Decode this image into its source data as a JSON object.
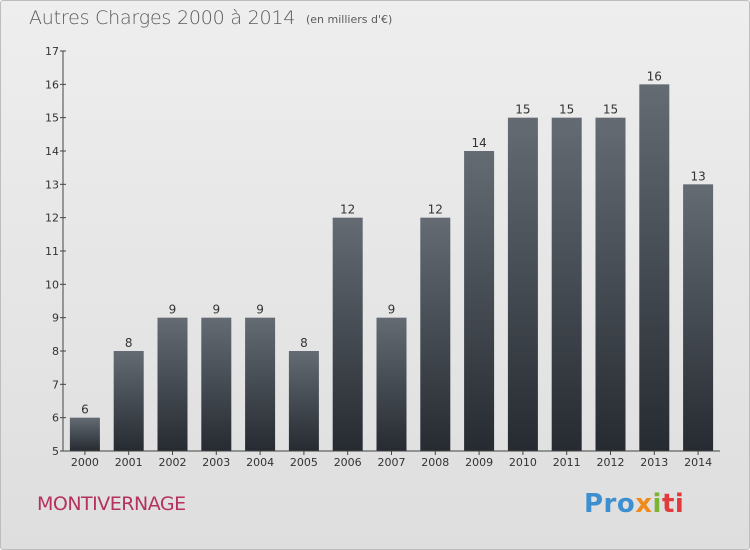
{
  "header": {
    "title": "Autres Charges 2000 à 2014",
    "subtitle": "(en milliers d'€)"
  },
  "footer": {
    "commune": "MONTIVERNAGE",
    "logo_parts": [
      "Pro",
      "x",
      "i",
      "ti"
    ]
  },
  "colors": {
    "bar_top": "#646b73",
    "bar_bottom": "#262b31",
    "axis": "#444444",
    "commune": "#b5315e"
  },
  "chart_data": {
    "type": "bar",
    "title": "Autres Charges 2000 à 2014",
    "subtitle": "(en milliers d'€)",
    "xlabel": "",
    "ylabel": "",
    "categories": [
      "2000",
      "2001",
      "2002",
      "2003",
      "2004",
      "2005",
      "2006",
      "2007",
      "2008",
      "2009",
      "2010",
      "2011",
      "2012",
      "2013",
      "2014"
    ],
    "values": [
      6,
      8,
      9,
      9,
      9,
      8,
      12,
      9,
      12,
      14,
      15,
      15,
      15,
      16,
      13
    ],
    "ylim": [
      5,
      17
    ],
    "yticks": [
      5,
      6,
      7,
      8,
      9,
      10,
      11,
      12,
      13,
      14,
      15,
      16,
      17
    ],
    "grid": false,
    "data_labels": true
  }
}
